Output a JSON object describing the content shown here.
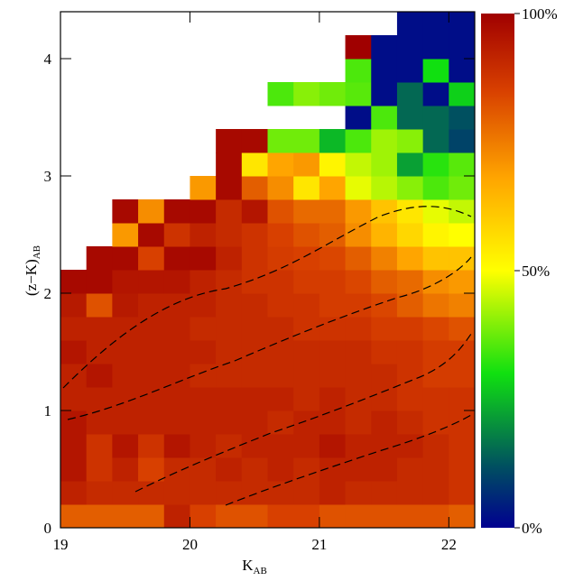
{
  "chart_data": {
    "type": "heatmap",
    "xlabel": {
      "main": "K",
      "sub": "AB"
    },
    "ylabel": {
      "main": "(z−K)",
      "sub": "AB"
    },
    "xlim": [
      19,
      22.2
    ],
    "ylim": [
      0,
      4.4
    ],
    "xticks": [
      19,
      20,
      21,
      22
    ],
    "yticks": [
      0,
      1,
      2,
      3,
      4
    ],
    "x": [
      19,
      19.2,
      19.4,
      19.6,
      19.8,
      20,
      20.2,
      20.4,
      20.6,
      20.8,
      21,
      21.2,
      21.4,
      21.6,
      21.8,
      22
    ],
    "y": [
      0,
      0.2,
      0.4,
      0.6,
      0.8,
      1,
      1.2,
      1.4,
      1.6,
      1.8,
      2,
      2.2,
      2.4,
      2.6,
      2.8,
      3,
      3.2,
      3.4,
      3.6,
      3.8,
      4,
      4.2
    ],
    "z": [
      [
        80,
        80,
        80,
        80,
        92,
        85,
        82,
        82,
        85,
        85,
        82,
        82,
        82,
        82,
        82,
        80
      ],
      [
        92,
        90,
        90,
        90,
        90,
        90,
        90,
        90,
        90,
        90,
        92,
        90,
        90,
        90,
        90,
        88
      ],
      [
        95,
        88,
        92,
        85,
        90,
        90,
        92,
        90,
        92,
        90,
        92,
        92,
        92,
        90,
        90,
        88
      ],
      [
        95,
        88,
        95,
        88,
        95,
        92,
        90,
        92,
        92,
        92,
        95,
        92,
        92,
        92,
        90,
        88
      ],
      [
        95,
        92,
        92,
        92,
        92,
        92,
        92,
        92,
        90,
        92,
        92,
        90,
        92,
        90,
        88,
        88
      ],
      [
        92,
        92,
        92,
        92,
        92,
        92,
        92,
        92,
        92,
        90,
        92,
        90,
        90,
        88,
        88,
        88
      ],
      [
        92,
        95,
        92,
        92,
        92,
        90,
        90,
        90,
        90,
        90,
        90,
        90,
        90,
        88,
        86,
        86
      ],
      [
        95,
        92,
        92,
        92,
        92,
        92,
        90,
        90,
        90,
        90,
        90,
        90,
        88,
        88,
        86,
        86
      ],
      [
        92,
        92,
        92,
        92,
        92,
        90,
        90,
        90,
        90,
        88,
        88,
        88,
        86,
        86,
        84,
        82
      ],
      [
        94,
        82,
        94,
        92,
        92,
        92,
        90,
        90,
        88,
        88,
        86,
        86,
        84,
        80,
        76,
        74
      ],
      [
        98,
        98,
        95,
        95,
        95,
        92,
        90,
        88,
        88,
        86,
        86,
        84,
        80,
        78,
        72,
        70
      ],
      [
        null,
        98,
        98,
        85,
        98,
        98,
        92,
        88,
        86,
        85,
        84,
        80,
        74,
        68,
        62,
        62
      ],
      [
        null,
        null,
        70,
        98,
        88,
        92,
        90,
        88,
        85,
        82,
        80,
        72,
        65,
        58,
        52,
        50
      ],
      [
        null,
        null,
        98,
        72,
        98,
        98,
        90,
        95,
        82,
        78,
        78,
        70,
        62,
        55,
        48,
        45
      ],
      [
        null,
        null,
        null,
        null,
        null,
        70,
        98,
        80,
        72,
        55,
        68,
        48,
        44,
        40,
        35,
        38
      ],
      [
        null,
        null,
        null,
        null,
        null,
        null,
        98,
        55,
        68,
        70,
        52,
        45,
        42,
        22,
        32,
        36
      ],
      [
        null,
        null,
        null,
        null,
        null,
        null,
        98,
        98,
        38,
        38,
        25,
        35,
        42,
        40,
        15,
        10
      ],
      [
        null,
        null,
        null,
        null,
        null,
        null,
        null,
        null,
        null,
        null,
        null,
        2,
        35,
        15,
        15,
        12
      ],
      [
        null,
        null,
        null,
        null,
        null,
        null,
        null,
        null,
        35,
        40,
        38,
        36,
        2,
        15,
        2,
        28
      ],
      [
        null,
        null,
        null,
        null,
        null,
        null,
        null,
        null,
        null,
        null,
        null,
        35,
        2,
        2,
        30,
        2
      ],
      [
        null,
        null,
        null,
        null,
        null,
        null,
        null,
        null,
        null,
        null,
        null,
        100,
        2,
        2,
        2,
        2
      ],
      [
        null,
        null,
        null,
        null,
        null,
        null,
        null,
        null,
        null,
        null,
        null,
        null,
        null,
        2,
        2,
        2
      ]
    ],
    "clim": [
      0,
      100
    ],
    "cticks": [
      {
        "value": 0,
        "label": "0%"
      },
      {
        "value": 50,
        "label": "50%"
      },
      {
        "value": 100,
        "label": "100%"
      }
    ],
    "colormap": [
      [
        0,
        "#000090"
      ],
      [
        12,
        "#005060"
      ],
      [
        30,
        "#10e010"
      ],
      [
        50,
        "#ffff00"
      ],
      [
        68,
        "#ffa500"
      ],
      [
        85,
        "#d84000"
      ],
      [
        100,
        "#a00000"
      ]
    ]
  }
}
